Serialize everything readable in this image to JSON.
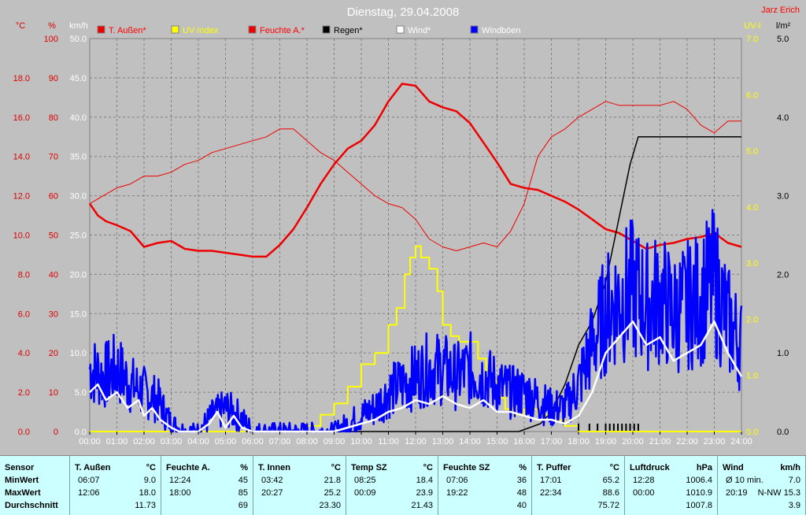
{
  "chart_data": {
    "type": "line",
    "title": "Dienstag, 29.04.2008",
    "corner_label": "Jarz Erich",
    "legend_placement": "top",
    "grid": true,
    "left_axes": [
      {
        "unit": "°C",
        "color": "#dd0000",
        "range": [
          0,
          20
        ],
        "ticks": [
          "0.0",
          "2.0",
          "4.0",
          "6.0",
          "8.0",
          "10.0",
          "12.0",
          "14.0",
          "16.0",
          "18.0"
        ]
      },
      {
        "unit": "%",
        "color": "#dd0000",
        "range": [
          0,
          100
        ],
        "ticks": [
          "0",
          "10",
          "20",
          "30",
          "40",
          "50",
          "60",
          "70",
          "80",
          "90",
          "100"
        ]
      },
      {
        "unit": "km/h",
        "color": "#ffffff",
        "range": [
          0,
          50
        ],
        "ticks": [
          "0.0",
          "5.0",
          "10.0",
          "15.0",
          "20.0",
          "25.0",
          "30.0",
          "35.0",
          "40.0",
          "45.0",
          "50.0"
        ]
      }
    ],
    "right_axes": [
      {
        "unit": "UV-I",
        "color": "#ffff00",
        "range": [
          0,
          7
        ],
        "ticks": [
          "0.0",
          "1.0",
          "2.0",
          "3.0",
          "4.0",
          "5.0",
          "6.0",
          "7.0"
        ]
      },
      {
        "unit": "l/m²",
        "color": "#000000",
        "range": [
          0,
          5
        ],
        "ticks": [
          "0.0",
          "1.0",
          "2.0",
          "3.0",
          "4.0",
          "5.0"
        ]
      }
    ],
    "x_ticks": [
      "00:00",
      "01:00",
      "02:00",
      "03:00",
      "04:00",
      "05:00",
      "06:00",
      "07:00",
      "08:00",
      "09:00",
      "10:00",
      "11:00",
      "12:00",
      "13:00",
      "14:00",
      "15:00",
      "16:00",
      "17:00",
      "18:00",
      "19:00",
      "20:00",
      "21:00",
      "22:00",
      "23:00",
      "24:00"
    ],
    "legend": [
      {
        "name": "T. Außen*",
        "color": "#ee0000",
        "text_color": "#ff0000"
      },
      {
        "name": "UV Index",
        "color": "#ffff00",
        "text_color": "#ffff00"
      },
      {
        "name": "Feuchte A.*",
        "color": "#ee0000",
        "text_color": "#ff0000"
      },
      {
        "name": "Regen*",
        "color": "#000000",
        "text_color": "#000000"
      },
      {
        "name": "Wind*",
        "color": "#ffffff",
        "text_color": "#ffffff"
      },
      {
        "name": "Windböen",
        "color": "#0000ff",
        "text_color": "#ffffff"
      }
    ],
    "series": [
      {
        "key": "temp",
        "axis": "°C",
        "color": "#ee0000",
        "width": 2.5,
        "x": [
          0,
          0.3,
          0.6,
          1,
          1.5,
          2,
          2.5,
          3,
          3.5,
          4,
          4.5,
          5,
          5.5,
          6,
          6.5,
          7,
          7.5,
          8,
          8.5,
          9,
          9.5,
          10,
          10.5,
          11,
          11.5,
          12,
          12.5,
          13,
          13.5,
          14,
          14.5,
          15,
          15.5,
          16,
          16.5,
          17,
          17.5,
          18,
          18.5,
          19,
          19.5,
          20,
          20.5,
          21,
          21.5,
          22,
          22.5,
          23,
          23.5,
          24
        ],
        "y": [
          11.6,
          11.0,
          10.7,
          10.5,
          10.2,
          9.4,
          9.6,
          9.7,
          9.3,
          9.2,
          9.2,
          9.1,
          9.0,
          8.9,
          8.9,
          9.5,
          10.3,
          11.4,
          12.6,
          13.6,
          14.4,
          14.8,
          15.6,
          16.8,
          17.7,
          17.6,
          16.8,
          16.5,
          16.3,
          15.7,
          14.7,
          13.7,
          12.6,
          12.4,
          12.3,
          12.0,
          11.7,
          11.3,
          10.8,
          10.3,
          10.1,
          9.7,
          9.3,
          9.5,
          9.6,
          9.8,
          9.9,
          10.1,
          9.6,
          9.4
        ]
      },
      {
        "key": "humidity",
        "axis": "%",
        "color": "#ee0000",
        "width": 1,
        "x": [
          0,
          0.5,
          1,
          1.5,
          2,
          2.5,
          3,
          3.5,
          4,
          4.5,
          5,
          5.5,
          6,
          6.5,
          7,
          7.5,
          8,
          8.5,
          9,
          9.5,
          10,
          10.5,
          11,
          11.5,
          12,
          12.5,
          13,
          13.5,
          14,
          14.5,
          15,
          15.5,
          16,
          16.5,
          17,
          17.5,
          18,
          18.5,
          19,
          19.5,
          20,
          20.5,
          21,
          21.5,
          22,
          22.5,
          23,
          23.5,
          24
        ],
        "y": [
          58,
          60,
          62,
          63,
          65,
          65,
          66,
          68,
          69,
          71,
          72,
          73,
          74,
          75,
          77,
          77,
          74,
          71,
          69,
          66,
          63,
          60,
          58,
          57,
          54,
          49,
          47,
          46,
          47,
          48,
          47,
          51,
          58,
          70,
          75,
          77,
          80,
          82,
          84,
          83,
          83,
          83,
          83,
          84,
          82,
          78,
          76,
          79,
          79
        ]
      },
      {
        "key": "uv",
        "axis": "UV-I",
        "color": "#ffff00",
        "width": 2,
        "step": true,
        "x": [
          0,
          7.5,
          8,
          8.5,
          9,
          9.5,
          10,
          10.5,
          11,
          11.3,
          11.6,
          11.8,
          12,
          12.2,
          12.5,
          12.8,
          13,
          13.3,
          13.6,
          14,
          14.3,
          14.6,
          15,
          15.3,
          15.6,
          16,
          16.5,
          17,
          17.5,
          18,
          24
        ],
        "y": [
          0,
          0,
          0.1,
          0.3,
          0.5,
          0.8,
          1.2,
          1.4,
          1.9,
          2.2,
          2.8,
          3.1,
          3.3,
          3.1,
          2.9,
          2.5,
          1.9,
          1.7,
          1.6,
          1.6,
          1.3,
          0.9,
          0.6,
          0.4,
          0.3,
          0.4,
          0.3,
          0.2,
          0.1,
          0,
          0
        ]
      },
      {
        "key": "rain",
        "axis": "l/m²",
        "color": "#000000",
        "width": 1.5,
        "x": [
          0,
          15.8,
          16.2,
          16.6,
          17,
          17.5,
          18,
          18.5,
          19,
          19.3,
          19.6,
          19.9,
          20.2,
          20.5,
          24
        ],
        "y": [
          0,
          0,
          0.05,
          0.1,
          0.25,
          0.6,
          1.1,
          1.4,
          1.9,
          2.4,
          2.9,
          3.4,
          3.75,
          3.75,
          3.75
        ]
      },
      {
        "key": "wind",
        "axis": "km/h",
        "color": "#ffffff",
        "width": 2.5,
        "x": [
          0,
          0.3,
          0.6,
          1,
          1.4,
          1.8,
          2,
          2.3,
          2.6,
          3,
          3.3,
          4,
          4.4,
          4.7,
          5,
          5.3,
          5.6,
          6,
          7,
          8,
          9,
          9.5,
          10,
          10.5,
          11,
          11.5,
          12,
          12.5,
          13,
          13.5,
          14,
          14.5,
          15,
          15.5,
          16,
          16.5,
          17,
          17.5,
          18,
          18.5,
          19,
          19.5,
          20,
          20.5,
          21,
          21.5,
          22,
          22.5,
          23,
          23.5,
          24
        ],
        "y": [
          5,
          6,
          4,
          5,
          3,
          4,
          2,
          3,
          1.5,
          0.5,
          0,
          0,
          1,
          2.5,
          0.5,
          2,
          0.5,
          0,
          0,
          0,
          0,
          0.5,
          1,
          1.5,
          2.5,
          3,
          4,
          3.5,
          4.5,
          3.5,
          3,
          4,
          2.5,
          2.5,
          2,
          1.5,
          1.5,
          1,
          2,
          5,
          10,
          12,
          14,
          11,
          12,
          9,
          10,
          11,
          14,
          10,
          7
        ]
      },
      {
        "key": "gusts",
        "axis": "km/h",
        "color": "#0000ff",
        "width": 2.5,
        "noisy": true,
        "amp": 0.45,
        "x": [
          0,
          0.5,
          1,
          1.5,
          2,
          2.5,
          3,
          3.5,
          4,
          4.5,
          5,
          5.5,
          6,
          7,
          8,
          9,
          9.5,
          10,
          10.5,
          11,
          11.5,
          12,
          12.5,
          13,
          13.5,
          14,
          14.5,
          15,
          15.5,
          16,
          16.5,
          17,
          17.5,
          18,
          18.5,
          19,
          19.5,
          20,
          20.5,
          21,
          21.5,
          22,
          22.5,
          23,
          23.5,
          24
        ],
        "y": [
          8,
          7,
          8,
          6,
          5,
          4,
          1,
          0,
          0,
          2,
          3,
          2,
          0,
          0,
          0,
          0,
          1,
          2,
          3,
          5,
          6,
          7,
          8,
          8,
          7,
          8,
          7,
          6,
          5,
          5,
          4,
          3,
          3,
          6,
          11,
          15,
          17,
          18,
          16,
          17,
          15,
          16,
          17,
          19,
          14,
          11
        ]
      }
    ],
    "rain_markers_x": [
      18.0,
      18.4,
      18.7,
      19.0,
      19.15,
      19.3,
      19.45,
      19.6,
      19.75,
      19.9,
      20.05,
      20.2
    ],
    "ylim_note": "shared plot area"
  },
  "stats": {
    "labels": {
      "sensor": "Sensor",
      "min": "MinWert",
      "max": "MaxWert",
      "avg": "Durchschnitt"
    },
    "columns": [
      {
        "name": "T. Außen",
        "unit": "°C",
        "min_time": "06:07",
        "min": "9.0",
        "max_time": "12:06",
        "max": "18.0",
        "avg": "11.73"
      },
      {
        "name": "Feuchte A.",
        "unit": "%",
        "min_time": "12:24",
        "min": "45",
        "max_time": "18:00",
        "max": "85",
        "avg": "69"
      },
      {
        "name": "T. Innen",
        "unit": "°C",
        "min_time": "03:42",
        "min": "21.8",
        "max_time": "20:27",
        "max": "25.2",
        "avg": "23.30"
      },
      {
        "name": "Temp SZ",
        "unit": "°C",
        "min_time": "08:25",
        "min": "18.4",
        "max_time": "00:09",
        "max": "23.9",
        "avg": "21.43"
      },
      {
        "name": "Feuchte SZ",
        "unit": "%",
        "min_time": "07:06",
        "min": "36",
        "max_time": "19:22",
        "max": "48",
        "avg": "40"
      },
      {
        "name": "T. Puffer",
        "unit": "°C",
        "min_time": "17:01",
        "min": "65.2",
        "max_time": "22:34",
        "max": "88.6",
        "avg": "75.72"
      },
      {
        "name": "Luftdruck",
        "unit": "hPa",
        "min_time": "12:28",
        "min": "1006.4",
        "max_time": "00:00",
        "max": "1010.9",
        "avg": "1007.8"
      },
      {
        "name": "Wind",
        "unit": "km/h",
        "min_time": "Ø 10 min.",
        "min": "7.0",
        "max_time": "20:19",
        "max": "N-NW 15.3",
        "avg": "3.9"
      }
    ]
  }
}
